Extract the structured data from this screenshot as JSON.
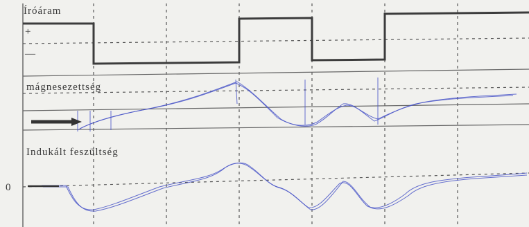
{
  "labels": {
    "current": "Íróáram",
    "plus": "+",
    "minus": "—",
    "magnetization": "mágnesezettség",
    "induced_voltage": "Indukált feszültség",
    "zero": "0"
  }
}
